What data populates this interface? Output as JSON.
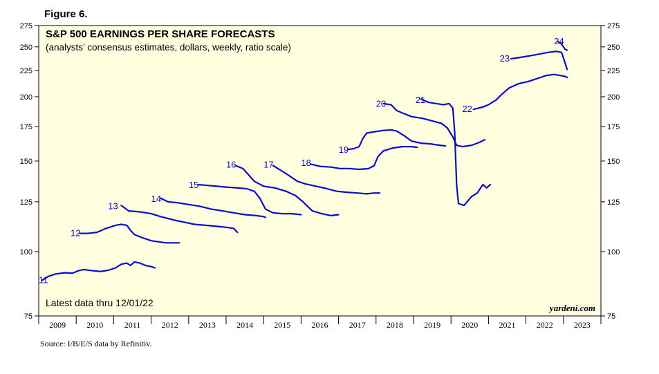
{
  "figure_label": "Figure 6.",
  "source": "Source: I/B/E/S data by Refinitiv.",
  "colors": {
    "line": "#0a0ad0",
    "plot_bg": "#ffffe0",
    "frame": "#000000"
  },
  "chart_data": {
    "type": "line",
    "title": "S&P 500 EARNINGS PER SHARE FORECASTS",
    "subtitle": "(analysts’ consensus estimates, dollars, weekly, ratio scale)",
    "note": "Latest data thru 12/01/22",
    "brand": "yardeni.com",
    "y_scale": "log",
    "ylim": [
      75,
      275
    ],
    "xlim": [
      2009,
      2024
    ],
    "y_ticks": [
      75,
      100,
      125,
      150,
      175,
      200,
      225,
      250,
      275
    ],
    "x_tick_labels": [
      "2009",
      "2010",
      "2011",
      "2012",
      "2013",
      "2014",
      "2015",
      "2016",
      "2017",
      "2018",
      "2019",
      "2020",
      "2021",
      "2022",
      "2023"
    ],
    "series": [
      {
        "name": "11",
        "label_at": [
          2009.0,
          88
        ],
        "points": [
          [
            2009.1,
            88
          ],
          [
            2009.25,
            89.5
          ],
          [
            2009.45,
            90.5
          ],
          [
            2009.7,
            91
          ],
          [
            2009.9,
            90.8
          ],
          [
            2010.05,
            91.8
          ],
          [
            2010.2,
            92.3
          ],
          [
            2010.45,
            91.8
          ],
          [
            2010.65,
            91.5
          ],
          [
            2010.85,
            92
          ],
          [
            2011.05,
            93
          ],
          [
            2011.2,
            94.5
          ],
          [
            2011.35,
            95
          ],
          [
            2011.45,
            94
          ],
          [
            2011.55,
            95.5
          ],
          [
            2011.7,
            95
          ],
          [
            2011.85,
            94
          ],
          [
            2012.0,
            93.5
          ],
          [
            2012.1,
            93
          ]
        ]
      },
      {
        "name": "12",
        "label_at": [
          2009.85,
          108.5
        ],
        "points": [
          [
            2010.1,
            108.5
          ],
          [
            2010.3,
            108.5
          ],
          [
            2010.55,
            109
          ],
          [
            2010.8,
            111
          ],
          [
            2011.05,
            112.5
          ],
          [
            2011.2,
            113
          ],
          [
            2011.35,
            112.5
          ],
          [
            2011.45,
            110
          ],
          [
            2011.55,
            108
          ],
          [
            2011.75,
            106.5
          ],
          [
            2012.0,
            105
          ],
          [
            2012.2,
            104.5
          ],
          [
            2012.4,
            104
          ],
          [
            2012.6,
            104
          ],
          [
            2012.75,
            104
          ]
        ]
      },
      {
        "name": "13",
        "label_at": [
          2010.85,
          122.5
        ],
        "points": [
          [
            2011.2,
            123
          ],
          [
            2011.4,
            120
          ],
          [
            2011.7,
            119.5
          ],
          [
            2012.0,
            118.5
          ],
          [
            2012.25,
            117
          ],
          [
            2012.45,
            116
          ],
          [
            2012.65,
            115
          ],
          [
            2012.9,
            114
          ],
          [
            2013.15,
            113
          ],
          [
            2013.45,
            112.5
          ],
          [
            2013.75,
            112
          ],
          [
            2014.0,
            111.5
          ],
          [
            2014.2,
            111
          ],
          [
            2014.3,
            109
          ]
        ]
      },
      {
        "name": "14",
        "label_at": [
          2012.0,
          126.5
        ],
        "points": [
          [
            2012.25,
            127
          ],
          [
            2012.45,
            125
          ],
          [
            2012.7,
            124.5
          ],
          [
            2013.0,
            123.5
          ],
          [
            2013.3,
            122.5
          ],
          [
            2013.6,
            121
          ],
          [
            2013.9,
            120
          ],
          [
            2014.2,
            119
          ],
          [
            2014.5,
            118
          ],
          [
            2014.8,
            117.5
          ],
          [
            2015.0,
            117
          ],
          [
            2015.05,
            116.5
          ]
        ]
      },
      {
        "name": "15",
        "label_at": [
          2013.0,
          134.5
        ],
        "points": [
          [
            2013.25,
            135
          ],
          [
            2013.5,
            134.5
          ],
          [
            2013.75,
            134
          ],
          [
            2014.0,
            133.5
          ],
          [
            2014.3,
            133
          ],
          [
            2014.55,
            132.5
          ],
          [
            2014.75,
            131
          ],
          [
            2014.9,
            127
          ],
          [
            2015.05,
            121
          ],
          [
            2015.25,
            119
          ],
          [
            2015.5,
            118.5
          ],
          [
            2015.75,
            118.5
          ],
          [
            2016.0,
            118
          ]
        ]
      },
      {
        "name": "16",
        "label_at": [
          2014.0,
          147.5
        ],
        "points": [
          [
            2014.25,
            147
          ],
          [
            2014.45,
            145
          ],
          [
            2014.6,
            141
          ],
          [
            2014.75,
            137
          ],
          [
            2015.0,
            134
          ],
          [
            2015.3,
            133
          ],
          [
            2015.6,
            131
          ],
          [
            2015.85,
            128.5
          ],
          [
            2016.05,
            125
          ],
          [
            2016.3,
            120
          ],
          [
            2016.55,
            118.5
          ],
          [
            2016.8,
            117.5
          ],
          [
            2017.0,
            118
          ]
        ]
      },
      {
        "name": "17",
        "label_at": [
          2015.0,
          147.5
        ],
        "points": [
          [
            2015.25,
            147
          ],
          [
            2015.45,
            144
          ],
          [
            2015.65,
            141
          ],
          [
            2015.9,
            137
          ],
          [
            2016.1,
            135.5
          ],
          [
            2016.4,
            134
          ],
          [
            2016.7,
            132.5
          ],
          [
            2016.95,
            131
          ],
          [
            2017.2,
            130.5
          ],
          [
            2017.5,
            130
          ],
          [
            2017.75,
            129.5
          ],
          [
            2017.95,
            130
          ],
          [
            2018.1,
            130
          ]
        ]
      },
      {
        "name": "18",
        "label_at": [
          2016.0,
          148.5
        ],
        "points": [
          [
            2016.25,
            148
          ],
          [
            2016.5,
            146.5
          ],
          [
            2016.8,
            146
          ],
          [
            2017.05,
            145
          ],
          [
            2017.3,
            145
          ],
          [
            2017.55,
            144.5
          ],
          [
            2017.8,
            145
          ],
          [
            2017.95,
            147
          ],
          [
            2018.05,
            153
          ],
          [
            2018.2,
            157
          ],
          [
            2018.45,
            159
          ],
          [
            2018.7,
            160
          ],
          [
            2018.95,
            160
          ],
          [
            2019.1,
            159.5
          ]
        ]
      },
      {
        "name": "19",
        "label_at": [
          2017.0,
          157.5
        ],
        "points": [
          [
            2017.25,
            158
          ],
          [
            2017.4,
            158.5
          ],
          [
            2017.55,
            160
          ],
          [
            2017.65,
            166
          ],
          [
            2017.75,
            170
          ],
          [
            2017.95,
            171
          ],
          [
            2018.2,
            172
          ],
          [
            2018.4,
            172.5
          ],
          [
            2018.55,
            171.5
          ],
          [
            2018.75,
            168
          ],
          [
            2018.95,
            164
          ],
          [
            2019.2,
            162.5
          ],
          [
            2019.45,
            162
          ],
          [
            2019.7,
            161
          ],
          [
            2019.85,
            160.5
          ]
        ]
      },
      {
        "name": "20",
        "label_at": [
          2018.0,
          193.5
        ],
        "points": [
          [
            2018.2,
            194
          ],
          [
            2018.4,
            193
          ],
          [
            2018.55,
            188
          ],
          [
            2018.7,
            186
          ],
          [
            2018.95,
            183
          ],
          [
            2019.25,
            181.5
          ],
          [
            2019.5,
            179.5
          ],
          [
            2019.75,
            177.5
          ],
          [
            2019.9,
            174
          ],
          [
            2020.05,
            167
          ],
          [
            2020.15,
            161
          ],
          [
            2020.3,
            160
          ],
          [
            2020.55,
            161
          ],
          [
            2020.75,
            163
          ],
          [
            2020.9,
            165
          ]
        ]
      },
      {
        "name": "21",
        "label_at": [
          2019.05,
          197
        ],
        "points": [
          [
            2019.2,
            198
          ],
          [
            2019.4,
            195
          ],
          [
            2019.6,
            194
          ],
          [
            2019.8,
            193
          ],
          [
            2019.95,
            194
          ],
          [
            2020.05,
            190
          ],
          [
            2020.1,
            170
          ],
          [
            2020.15,
            135
          ],
          [
            2020.2,
            124
          ],
          [
            2020.35,
            123
          ],
          [
            2020.55,
            128
          ],
          [
            2020.7,
            130
          ],
          [
            2020.85,
            135
          ],
          [
            2020.95,
            133
          ],
          [
            2021.05,
            135
          ]
        ]
      },
      {
        "name": "22",
        "label_at": [
          2020.3,
          189
        ],
        "points": [
          [
            2020.6,
            189
          ],
          [
            2020.85,
            191
          ],
          [
            2021.0,
            193
          ],
          [
            2021.2,
            197
          ],
          [
            2021.35,
            202
          ],
          [
            2021.55,
            208
          ],
          [
            2021.8,
            212
          ],
          [
            2022.05,
            214
          ],
          [
            2022.3,
            217
          ],
          [
            2022.55,
            220
          ],
          [
            2022.75,
            221
          ],
          [
            2022.9,
            220
          ],
          [
            2023.05,
            219
          ],
          [
            2023.1,
            218
          ]
        ]
      },
      {
        "name": "23",
        "label_at": [
          2021.3,
          237
        ],
        "points": [
          [
            2021.6,
            237
          ],
          [
            2021.85,
            238.5
          ],
          [
            2022.15,
            240.5
          ],
          [
            2022.4,
            242.5
          ],
          [
            2022.6,
            244
          ],
          [
            2022.8,
            245
          ],
          [
            2022.95,
            244
          ],
          [
            2023.0,
            238
          ],
          [
            2023.05,
            232
          ],
          [
            2023.1,
            226
          ]
        ]
      },
      {
        "name": "24",
        "label_at": [
          2022.75,
          256
        ],
        "points": [
          [
            2022.85,
            256
          ],
          [
            2022.95,
            253
          ],
          [
            2023.05,
            247
          ],
          [
            2023.1,
            246.5
          ]
        ]
      }
    ]
  }
}
